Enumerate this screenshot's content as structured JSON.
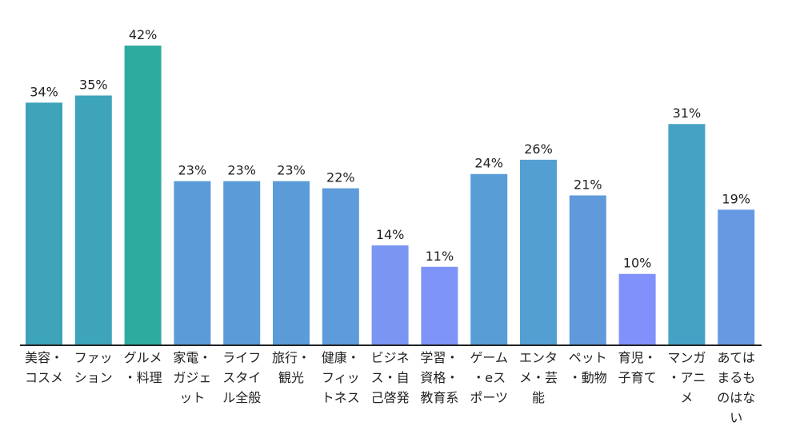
{
  "chart_data": {
    "type": "bar",
    "categories": [
      "美容・コスメ",
      "ファッション",
      "グルメ・料理",
      "家電・ガジェット",
      "ライフスタイル全般",
      "旅行・観光",
      "健康・フィットネス",
      "ビジネス・自己啓発",
      "学習・資格・教育系",
      "ゲーム・eスポーツ",
      "エンタメ・芸能",
      "ペット・動物",
      "育児・子育て",
      "マンガ・アニメ",
      "あてはまるものはない"
    ],
    "values": [
      34,
      35,
      42,
      23,
      23,
      23,
      22,
      14,
      11,
      24,
      26,
      21,
      10,
      31,
      19
    ],
    "value_labels": [
      "34%",
      "35%",
      "42%",
      "23%",
      "23%",
      "23%",
      "22%",
      "14%",
      "11%",
      "24%",
      "26%",
      "21%",
      "10%",
      "31%",
      "19%"
    ],
    "colors": [
      "#3da3b8",
      "#3ea4b9",
      "#2eab9f",
      "#5b9cd8",
      "#5b9cd8",
      "#5b9cd8",
      "#5d9bda",
      "#7b96f2",
      "#7f94f8",
      "#599dd6",
      "#549fd2",
      "#619ada",
      "#8191fb",
      "#45a2c4",
      "#6799e3"
    ]
  }
}
